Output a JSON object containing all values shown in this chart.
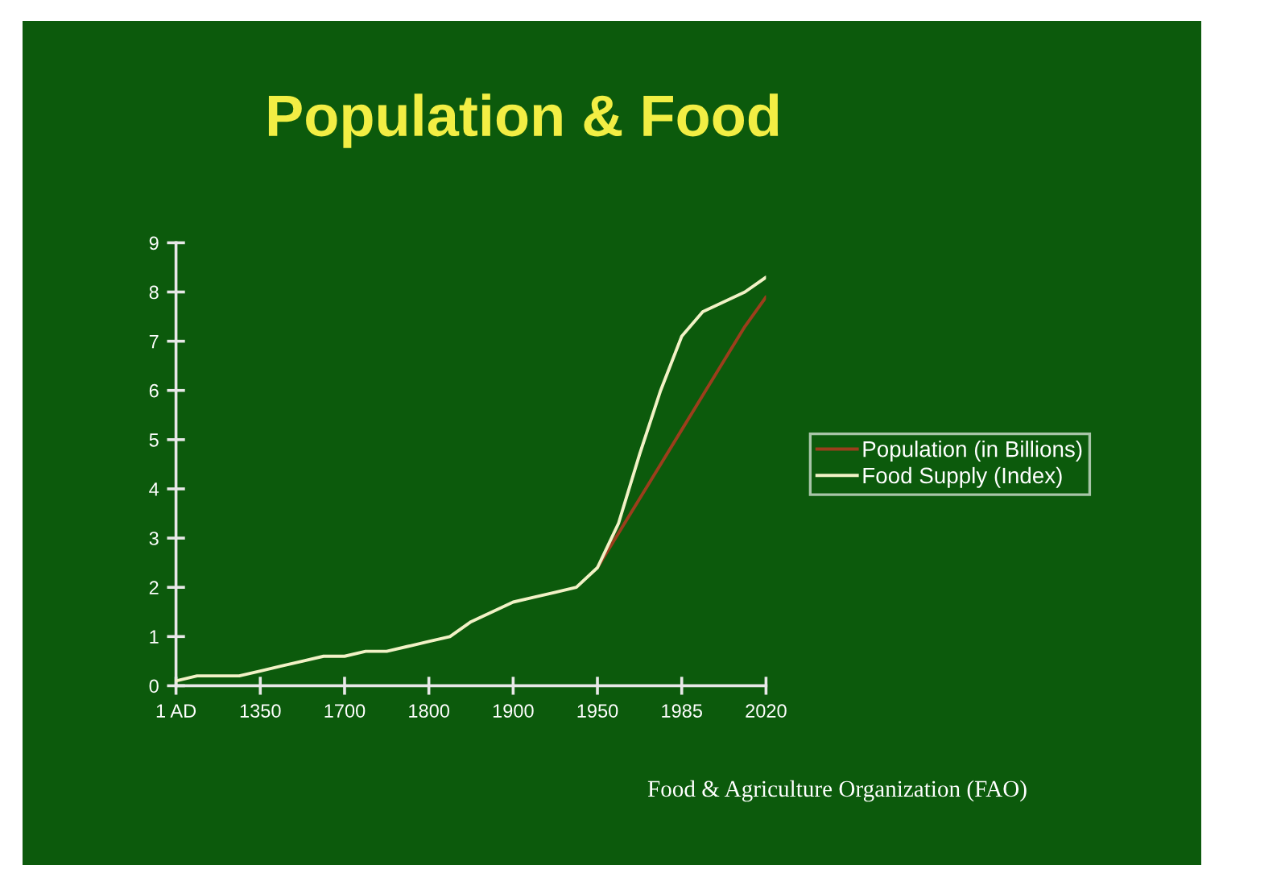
{
  "chart_data": {
    "type": "line",
    "title": "Population & Food",
    "categories": [
      "1 AD",
      null,
      null,
      null,
      "1350",
      null,
      null,
      null,
      "1700",
      null,
      null,
      null,
      "1800",
      null,
      null,
      null,
      "1900",
      null,
      null,
      null,
      "1950",
      null,
      null,
      null,
      "1985",
      null,
      null,
      null,
      "2020"
    ],
    "series": [
      {
        "name": "Population (in Billions)",
        "color": "#9c3e1c",
        "values": [
          null,
          null,
          null,
          null,
          null,
          null,
          null,
          null,
          null,
          null,
          null,
          null,
          null,
          null,
          null,
          null,
          null,
          null,
          null,
          null,
          2.4,
          3.1,
          3.8,
          4.5,
          5.2,
          5.9,
          6.6,
          7.3,
          7.9
        ]
      },
      {
        "name": "Food Supply (Index)",
        "color": "#f2f2c6",
        "values": [
          0.1,
          0.2,
          0.2,
          0.2,
          0.3,
          0.4,
          0.5,
          0.6,
          0.6,
          0.7,
          0.7,
          0.8,
          0.9,
          1.0,
          1.3,
          1.5,
          1.7,
          1.8,
          1.9,
          2.0,
          2.4,
          3.3,
          4.7,
          6.0,
          7.1,
          7.6,
          7.8,
          8.0,
          8.3
        ]
      }
    ],
    "ylim": [
      0,
      9
    ],
    "yticks": [
      0,
      1,
      2,
      3,
      4,
      5,
      6,
      7,
      8,
      9
    ],
    "grid": false,
    "legend": "right",
    "annotations": [
      "Food & Agriculture Organization (FAO)"
    ]
  }
}
